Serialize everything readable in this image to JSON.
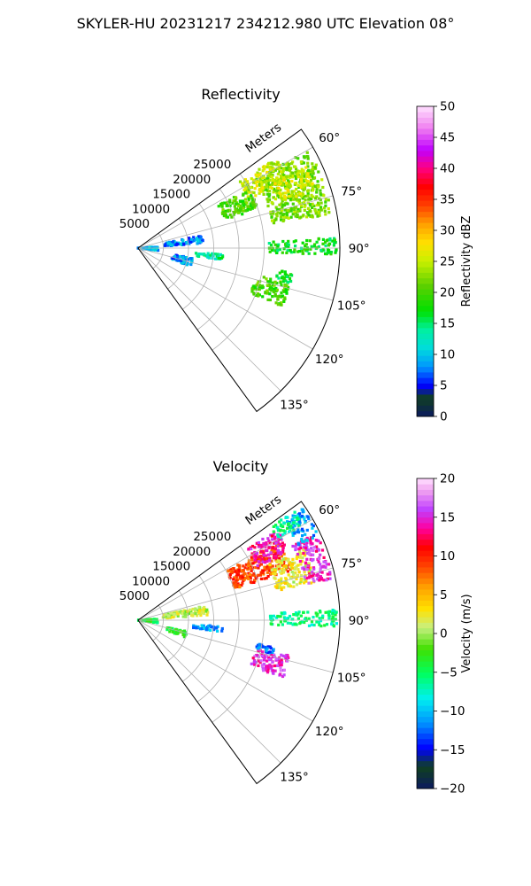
{
  "figure_title": "SKYLER-HU  20231217  234212.980 UTC Elevation 08°",
  "chart_data": [
    {
      "type": "polar-sector",
      "title": "Reflectivity",
      "radial_label": "Meters",
      "theta_range_deg": [
        54,
        144
      ],
      "r_max": 40000,
      "r_ticks": [
        5000,
        10000,
        15000,
        20000,
        25000
      ],
      "r_tick_labels": [
        "5000",
        "10000",
        "15000",
        "20000",
        "25000"
      ],
      "theta_ticks": [
        60,
        75,
        90,
        105,
        120,
        135
      ],
      "theta_tick_labels": [
        "60°",
        "75°",
        "90°",
        "105°",
        "120°",
        "135°"
      ],
      "grid": true,
      "colorbar": {
        "label": "Reflectivity dBZ",
        "min": 0,
        "max": 50,
        "ticks": [
          0,
          5,
          10,
          15,
          20,
          25,
          30,
          35,
          40,
          45,
          50
        ],
        "tick_labels": [
          "0",
          "5",
          "10",
          "15",
          "20",
          "25",
          "30",
          "35",
          "40",
          "45",
          "50"
        ]
      },
      "echo_regions": [
        {
          "theta": [
            60,
            80
          ],
          "r": [
            27000,
            39000
          ],
          "value": 22
        },
        {
          "theta": [
            57,
            66
          ],
          "r": [
            24000,
            33000
          ],
          "value": 25
        },
        {
          "theta": [
            64,
            72
          ],
          "r": [
            30000,
            37000
          ],
          "value": 26
        },
        {
          "theta": [
            62,
            72
          ],
          "r": [
            18000,
            25000
          ],
          "value": 20
        },
        {
          "theta": [
            87,
            92
          ],
          "r": [
            26000,
            39500
          ],
          "value": 17
        },
        {
          "theta": [
            94,
            98
          ],
          "r": [
            11000,
            17000
          ],
          "value": 14
        },
        {
          "theta": [
            103,
            112
          ],
          "r": [
            24000,
            31000
          ],
          "value": 20
        },
        {
          "theta": [
            79,
            86
          ],
          "r": [
            5000,
            13000
          ],
          "value": 8
        },
        {
          "theta": [
            86,
            98
          ],
          "r": [
            0,
            4000
          ],
          "value": 9
        },
        {
          "theta": [
            100,
            109
          ],
          "r": [
            7000,
            11000
          ],
          "value": 8
        },
        {
          "theta": [
            99,
            103
          ],
          "r": [
            28000,
            31000
          ],
          "value": 17
        }
      ]
    },
    {
      "type": "polar-sector",
      "title": "Velocity",
      "radial_label": "Meters",
      "theta_range_deg": [
        54,
        144
      ],
      "r_max": 40000,
      "r_ticks": [
        5000,
        10000,
        15000,
        20000,
        25000
      ],
      "r_tick_labels": [
        "5000",
        "10000",
        "15000",
        "20000",
        "25000"
      ],
      "theta_ticks": [
        60,
        75,
        90,
        105,
        120,
        135
      ],
      "theta_tick_labels": [
        "60°",
        "75°",
        "90°",
        "105°",
        "120°",
        "135°"
      ],
      "grid": true,
      "colorbar": {
        "label": "Velocity (m/s)",
        "min": -20,
        "max": 20,
        "ticks": [
          -20,
          -15,
          -10,
          -5,
          0,
          5,
          10,
          15,
          20
        ],
        "tick_labels": [
          "−20",
          "−15",
          "−10",
          "−5",
          "0",
          "5",
          "10",
          "15",
          "20"
        ]
      },
      "echo_regions": [
        {
          "theta": [
            61,
            72
          ],
          "r": [
            20000,
            32000
          ],
          "value": 9
        },
        {
          "theta": [
            57,
            66
          ],
          "r": [
            26000,
            33000
          ],
          "value": 14
        },
        {
          "theta": [
            67,
            78
          ],
          "r": [
            28000,
            36000
          ],
          "value": 2
        },
        {
          "theta": [
            64,
            78
          ],
          "r": [
            34000,
            39500
          ],
          "value": 15
        },
        {
          "theta": [
            56,
            65
          ],
          "r": [
            35000,
            39500
          ],
          "value": -11
        },
        {
          "theta": [
            55,
            60
          ],
          "r": [
            32000,
            38000
          ],
          "value": -6
        },
        {
          "theta": [
            87,
            92
          ],
          "r": [
            26000,
            39500
          ],
          "value": -6
        },
        {
          "theta": [
            94,
            98
          ],
          "r": [
            11000,
            17000
          ],
          "value": -11
        },
        {
          "theta": [
            103,
            112
          ],
          "r": [
            24000,
            31000
          ],
          "value": 15
        },
        {
          "theta": [
            101,
            104
          ],
          "r": [
            24000,
            28000
          ],
          "value": -12
        },
        {
          "theta": [
            78,
            86
          ],
          "r": [
            5000,
            14000
          ],
          "value": 1
        },
        {
          "theta": [
            86,
            98
          ],
          "r": [
            0,
            4000
          ],
          "value": -4
        },
        {
          "theta": [
            103,
            110
          ],
          "r": [
            6000,
            10000
          ],
          "value": -3
        }
      ]
    }
  ]
}
